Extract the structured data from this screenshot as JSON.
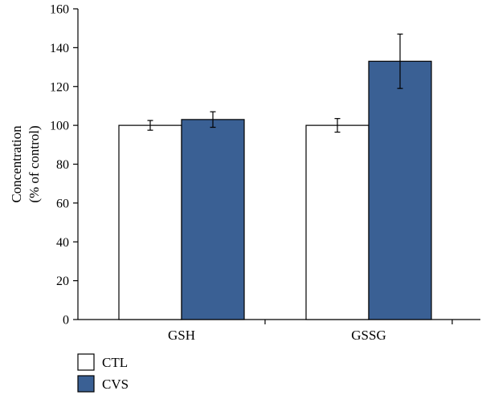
{
  "chart_data": {
    "type": "bar",
    "categories": [
      "GSH",
      "GSSG"
    ],
    "series": [
      {
        "name": "CTL",
        "values": [
          100,
          100
        ],
        "errors": [
          2.5,
          3.5
        ],
        "color": "#ffffff",
        "stroke": "#000000"
      },
      {
        "name": "CVS",
        "values": [
          103,
          133
        ],
        "errors": [
          4,
          14
        ],
        "color": "#3a6094",
        "stroke": "#000000"
      }
    ],
    "title": "",
    "xlabel": "",
    "ylabel_lines": [
      "Concentration",
      "(% of control)"
    ],
    "ylim": [
      0,
      160
    ],
    "yticks": [
      0,
      20,
      40,
      60,
      80,
      100,
      120,
      140,
      160
    ],
    "grid": false,
    "legend_position": "bottom-left"
  }
}
